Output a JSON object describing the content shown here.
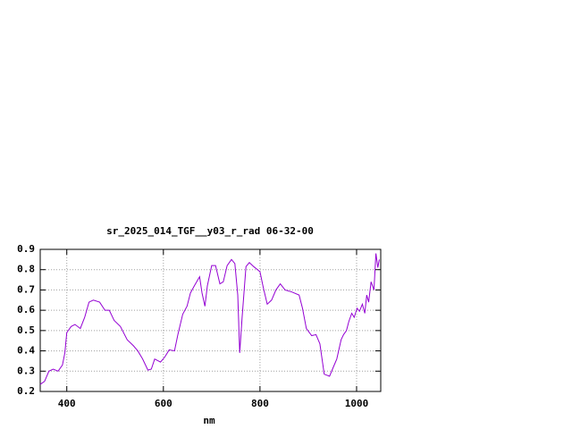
{
  "chart_data": {
    "type": "line",
    "title": "sr_2025_014_TGF__y03_r_rad 06-32-00",
    "xlabel": "nm",
    "x": [
      345,
      354,
      363,
      372,
      382,
      391,
      396,
      400,
      409,
      417,
      428,
      437,
      446,
      455,
      468,
      479,
      488,
      498,
      511,
      525,
      538,
      547,
      557,
      568,
      575,
      582,
      594,
      603,
      612,
      623,
      630,
      640,
      649,
      656,
      664,
      675,
      680,
      686,
      691,
      700,
      708,
      717,
      724,
      732,
      741,
      748,
      754,
      758,
      763,
      771,
      778,
      787,
      800,
      807,
      815,
      824,
      833,
      842,
      852,
      866,
      881,
      888,
      896,
      907,
      916,
      924,
      933,
      944,
      951,
      959,
      968,
      973,
      979,
      984,
      990,
      995,
      1001,
      1006,
      1012,
      1017,
      1021,
      1025,
      1030,
      1036,
      1040,
      1044,
      1047
    ],
    "series": [
      {
        "color": "#9400d3",
        "values": [
          0.235,
          0.25,
          0.3,
          0.31,
          0.3,
          0.33,
          0.39,
          0.49,
          0.52,
          0.53,
          0.51,
          0.565,
          0.64,
          0.65,
          0.64,
          0.6,
          0.6,
          0.55,
          0.52,
          0.455,
          0.425,
          0.4,
          0.36,
          0.305,
          0.31,
          0.36,
          0.345,
          0.37,
          0.405,
          0.4,
          0.48,
          0.58,
          0.62,
          0.685,
          0.72,
          0.765,
          0.685,
          0.62,
          0.72,
          0.82,
          0.82,
          0.73,
          0.74,
          0.82,
          0.85,
          0.83,
          0.675,
          0.39,
          0.565,
          0.815,
          0.835,
          0.815,
          0.79,
          0.71,
          0.63,
          0.65,
          0.7,
          0.73,
          0.7,
          0.69,
          0.675,
          0.61,
          0.51,
          0.475,
          0.48,
          0.435,
          0.285,
          0.275,
          0.315,
          0.36,
          0.455,
          0.48,
          0.5,
          0.545,
          0.585,
          0.565,
          0.61,
          0.595,
          0.63,
          0.585,
          0.675,
          0.64,
          0.74,
          0.7,
          0.88,
          0.81,
          0.85
        ]
      }
    ],
    "xlim": [
      345,
      1050
    ],
    "xticks": [
      400,
      600,
      800,
      1000
    ],
    "ylim": [
      0.2,
      0.9
    ],
    "yticks": [
      0.2,
      0.3,
      0.4,
      0.5,
      0.6,
      0.7,
      0.8,
      0.9
    ],
    "grid": true
  }
}
